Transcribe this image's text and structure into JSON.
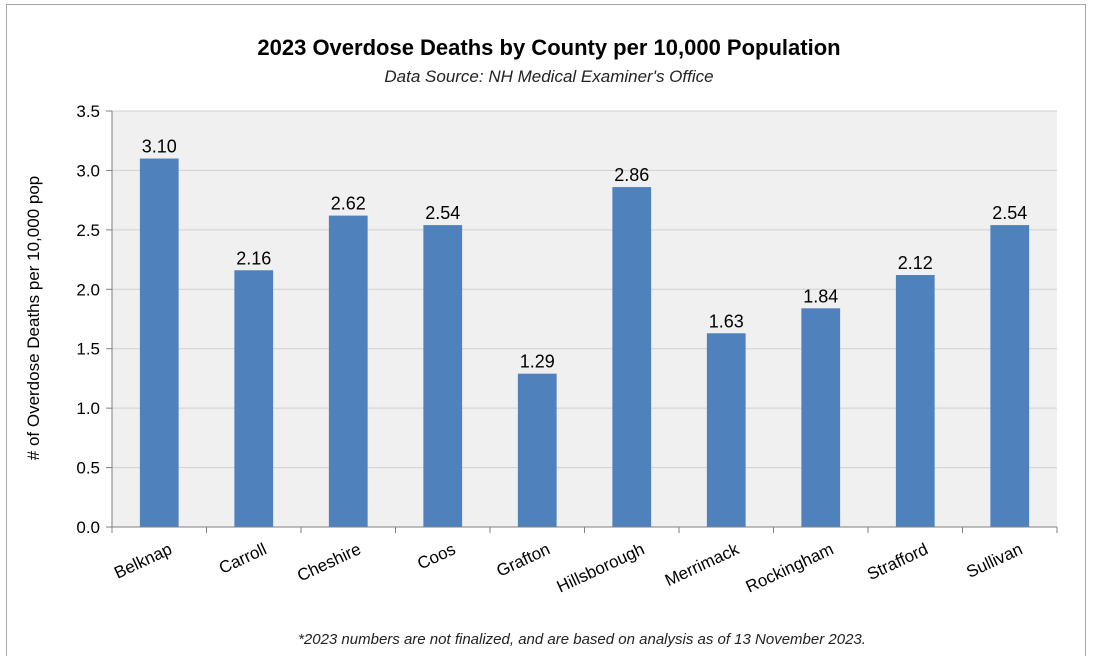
{
  "chart_data": {
    "type": "bar",
    "title": "2023 Overdose Deaths by County per 10,000 Population",
    "subtitle": "Data Source: NH Medical Examiner's Office",
    "ylabel": "# of Overdose Deaths per 10,000 pop",
    "xlabel": "",
    "ylim": [
      0,
      3.5
    ],
    "yticks": [
      "0.0",
      "0.5",
      "1.0",
      "1.5",
      "2.0",
      "2.5",
      "3.0",
      "3.5"
    ],
    "categories": [
      "Belknap",
      "Carroll",
      "Cheshire",
      "Coos",
      "Grafton",
      "Hillsborough",
      "Merrimack",
      "Rockingham",
      "Strafford",
      "Sullivan"
    ],
    "values": [
      3.1,
      2.16,
      2.62,
      2.54,
      1.29,
      2.86,
      1.63,
      1.84,
      2.12,
      2.54
    ],
    "data_labels": [
      "3.10",
      "2.16",
      "2.62",
      "2.54",
      "1.29",
      "2.86",
      "1.63",
      "1.84",
      "2.12",
      "2.54"
    ],
    "grid": true,
    "bar_color": "#4f81bd",
    "plot_background": "#f0f0f0",
    "footnote": "*2023 numbers are not finalized, and are based on analysis as of 13 November 2023."
  }
}
